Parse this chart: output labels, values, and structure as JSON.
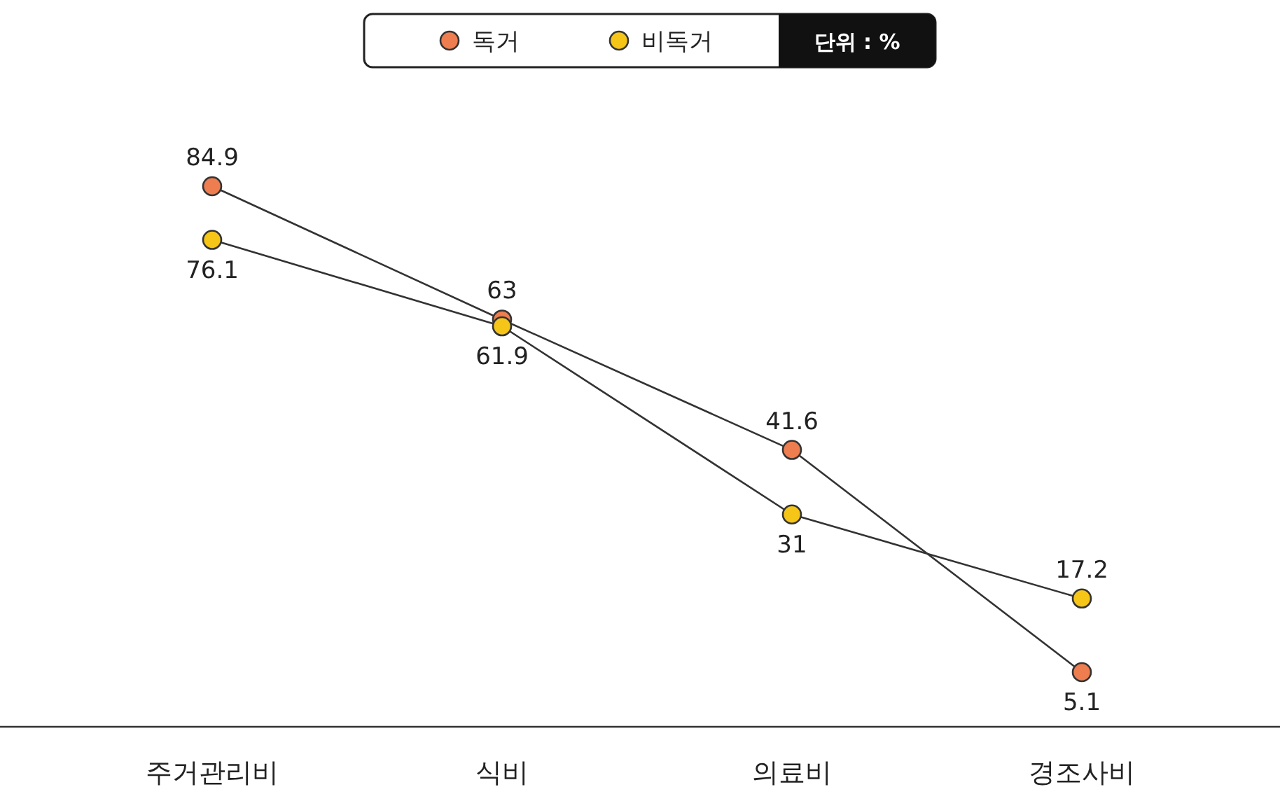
{
  "chart_data": {
    "type": "line",
    "categories": [
      "주거관리비",
      "식비",
      "의료비",
      "경조사비"
    ],
    "series": [
      {
        "name": "독거",
        "color": "#ee7d4f",
        "values": [
          84.9,
          63,
          41.6,
          5.1
        ]
      },
      {
        "name": "비독거",
        "color": "#f5c518",
        "values": [
          76.1,
          61.9,
          31,
          17.2
        ]
      }
    ],
    "data_labels": true,
    "marker": "circle",
    "legend": "top",
    "grid": false,
    "annotations": [
      "단위 : %"
    ]
  }
}
